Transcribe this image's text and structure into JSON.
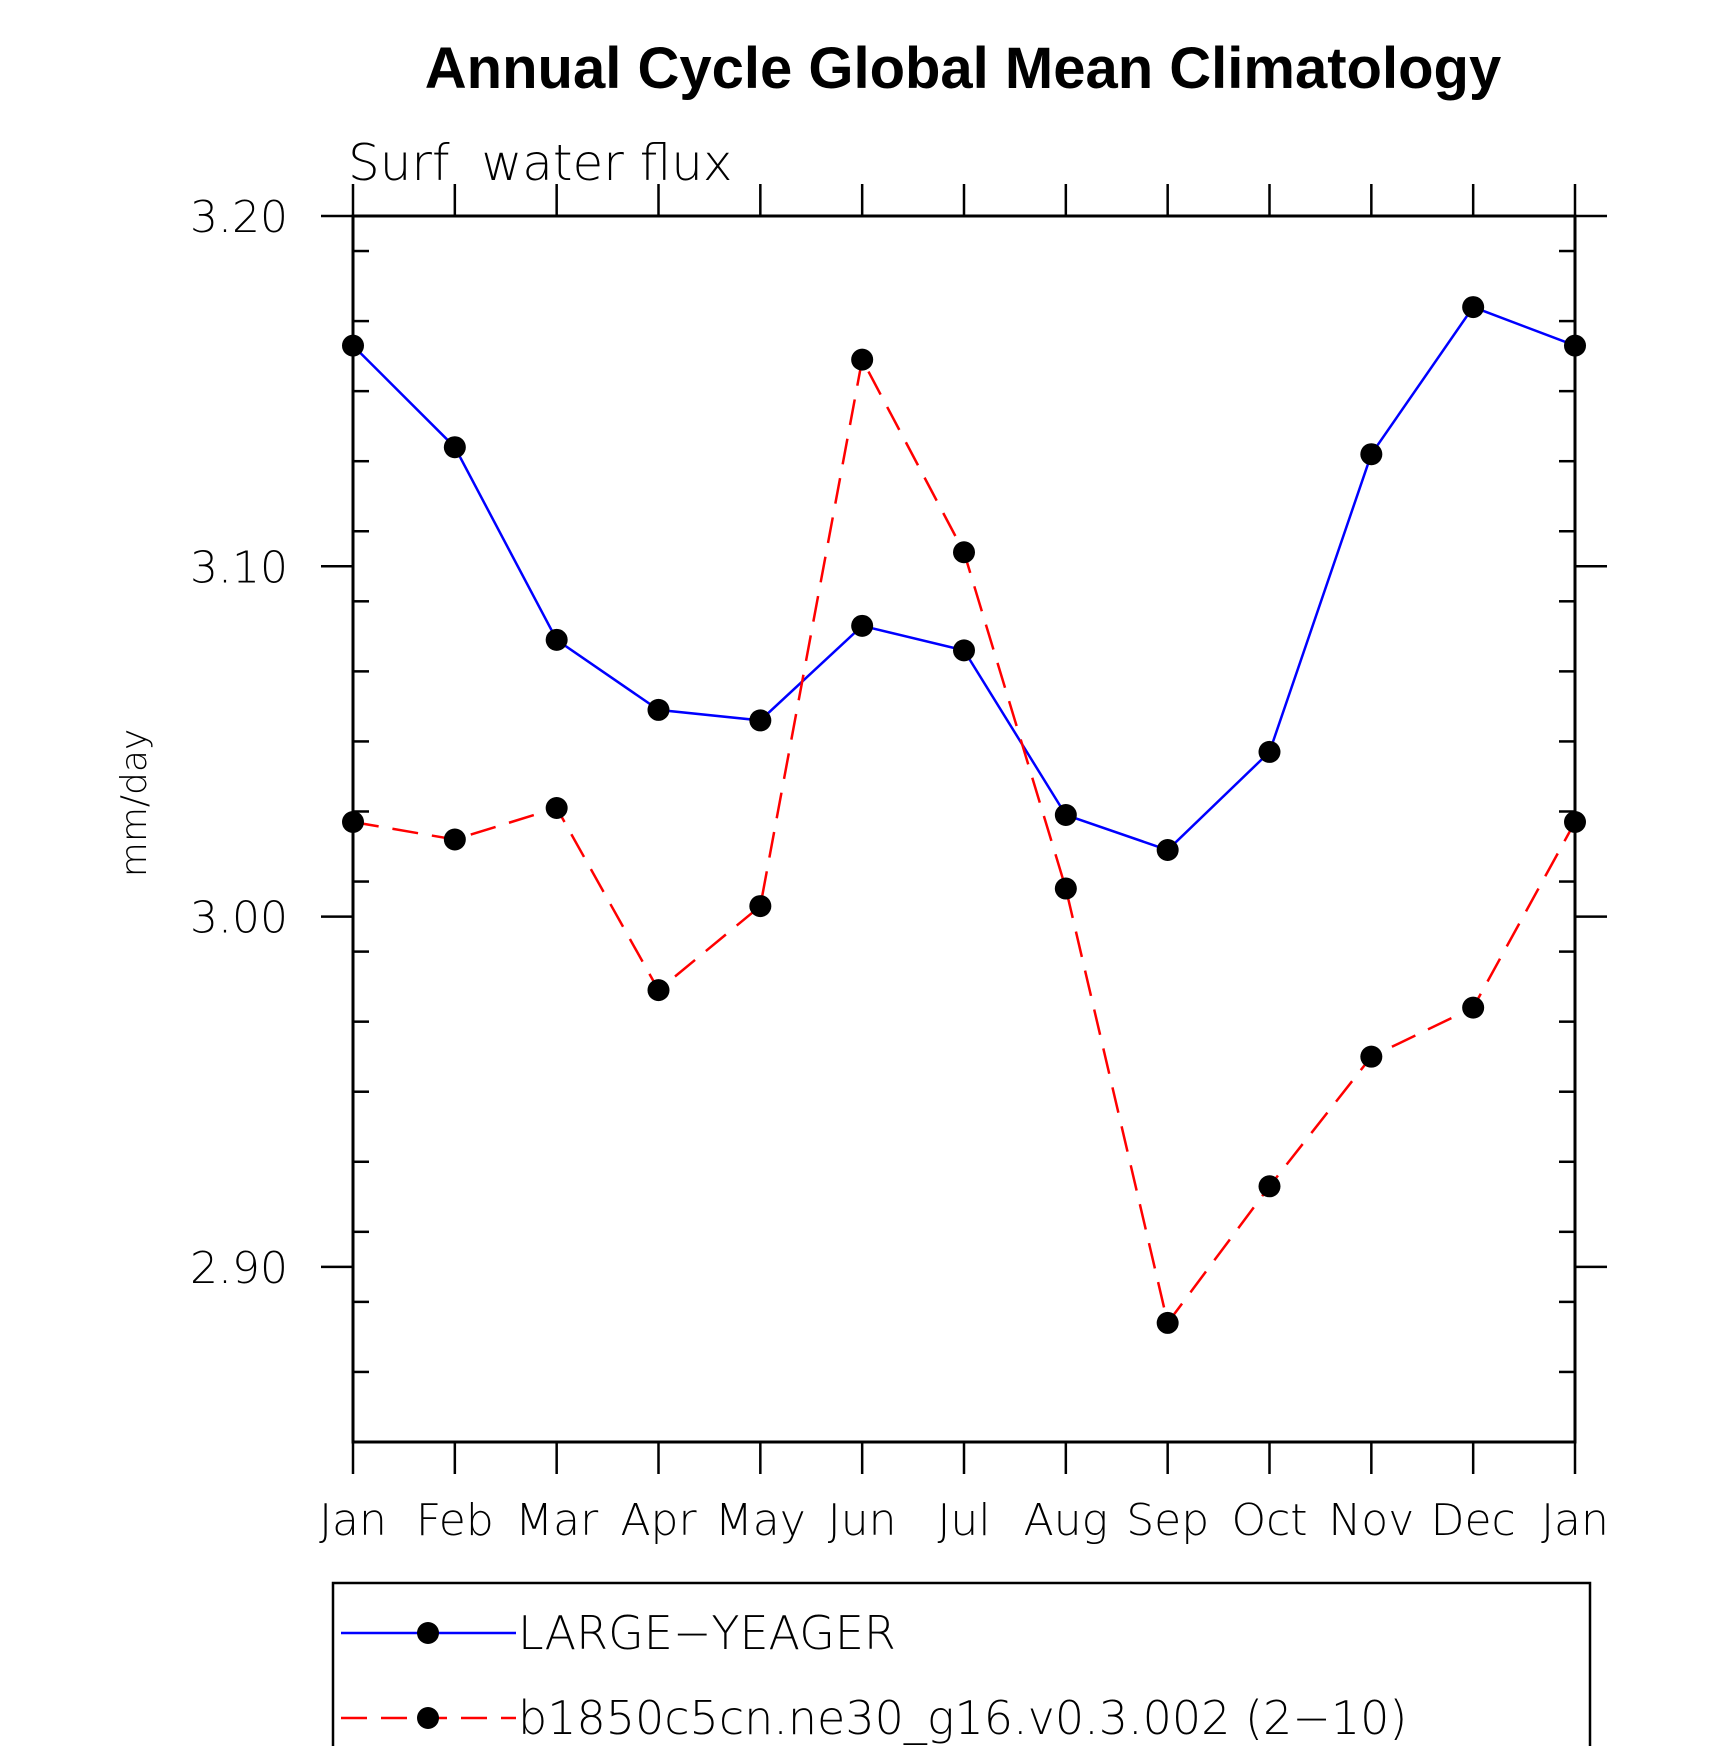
{
  "chart_data": {
    "type": "line",
    "title": "Annual Cycle Global Mean Climatology",
    "subtitle": "Surf  water flux",
    "ylabel": "mm/day",
    "xlabel": "",
    "categories": [
      "Jan",
      "Feb",
      "Mar",
      "Apr",
      "May",
      "Jun",
      "Jul",
      "Aug",
      "Sep",
      "Oct",
      "Nov",
      "Dec",
      "Jan"
    ],
    "ylim": [
      2.85,
      3.2
    ],
    "yticks": [
      2.9,
      3.0,
      3.1,
      3.2
    ],
    "ytick_labels": [
      "2.90",
      "3.00",
      "3.10",
      "3.20"
    ],
    "yminor_step": 0.02,
    "grid": false,
    "legend_placement": "bottom",
    "series": [
      {
        "name": "LARGE−YEAGER",
        "color": "#0000ff",
        "line_style": "solid",
        "marker": "filled-circle",
        "values": [
          3.163,
          3.134,
          3.079,
          3.059,
          3.056,
          3.083,
          3.076,
          3.029,
          3.019,
          3.047,
          3.132,
          3.174,
          3.163
        ]
      },
      {
        "name": "b1850c5cn.ne30_g16.v0.3.002 (2−10)",
        "color": "#ff0000",
        "line_style": "dashed",
        "marker": "filled-circle",
        "values": [
          3.027,
          3.022,
          3.031,
          2.979,
          3.003,
          3.159,
          3.104,
          3.008,
          2.884,
          2.923,
          2.96,
          2.974,
          3.027
        ]
      }
    ]
  }
}
